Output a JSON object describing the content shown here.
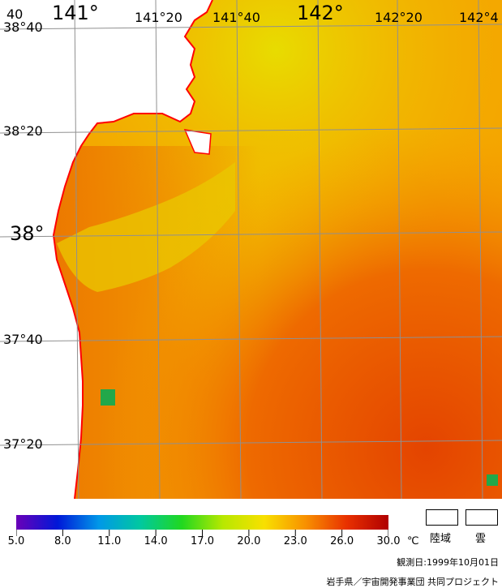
{
  "map": {
    "colors": {
      "land_fill": "#ffffff",
      "coastline": "#ff0000",
      "grid": "#909090",
      "sst_cool": "#e8e000",
      "sst_mid": "#f5b000",
      "sst_warm": "#ee6000",
      "sst_hot": "#e44a00",
      "cold_patch": "#22a84a"
    },
    "latitude_labels": [
      "38°40",
      "38°20",
      "38°",
      "37°40",
      "37°20"
    ],
    "longitude_labels": [
      "40",
      "141°",
      "141°20",
      "141°40",
      "142°",
      "142°20",
      "142°4"
    ]
  },
  "colorbar": {
    "ticks": [
      "5.0",
      "8.0",
      "11.0",
      "14.0",
      "17.0",
      "20.0",
      "23.0",
      "26.0",
      "30.0"
    ],
    "unit": "℃",
    "colors": [
      "#6a00b8",
      "#0018d8",
      "#0098e8",
      "#00c8a0",
      "#20d820",
      "#b8e800",
      "#f8e000",
      "#f89000",
      "#e83000",
      "#b00000"
    ]
  },
  "legend": {
    "land_label": "陸域",
    "cloud_label": "雲"
  },
  "footer": {
    "observation_date": "観測日:1999年10月01日",
    "credit": "岩手県／宇宙開発事業団 共同プロジェクト"
  }
}
